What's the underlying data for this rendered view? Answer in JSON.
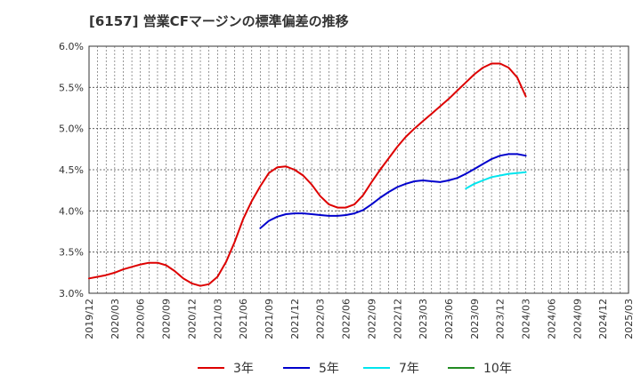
{
  "chart_data": {
    "type": "line",
    "title": "[6157]  営業CFマージンの標準偏差の推移",
    "xlabel": "",
    "ylabel": "",
    "ylim": [
      3.0,
      6.0
    ],
    "yticks": [
      "3.0%",
      "3.5%",
      "4.0%",
      "4.5%",
      "5.0%",
      "5.5%",
      "6.0%"
    ],
    "ytick_values": [
      3.0,
      3.5,
      4.0,
      4.5,
      5.0,
      5.5,
      6.0
    ],
    "xticks": [
      "2019/12",
      "2020/03",
      "2020/06",
      "2020/09",
      "2020/12",
      "2021/03",
      "2021/06",
      "2021/09",
      "2021/12",
      "2022/03",
      "2022/06",
      "2022/09",
      "2022/12",
      "2023/03",
      "2023/06",
      "2023/09",
      "2023/12",
      "2024/03",
      "2024/06",
      "2024/09",
      "2024/12",
      "2025/03"
    ],
    "grid": true,
    "legend_position": "bottom",
    "series": [
      {
        "name": "3年",
        "color": "#dd0000",
        "x": [
          "2019/12",
          "2020/01",
          "2020/02",
          "2020/03",
          "2020/04",
          "2020/05",
          "2020/06",
          "2020/07",
          "2020/08",
          "2020/09",
          "2020/10",
          "2020/11",
          "2020/12",
          "2021/01",
          "2021/02",
          "2021/03",
          "2021/04",
          "2021/05",
          "2021/06",
          "2021/07",
          "2021/08",
          "2021/09",
          "2021/10",
          "2021/11",
          "2021/12",
          "2022/01",
          "2022/02",
          "2022/03",
          "2022/04",
          "2022/05",
          "2022/06",
          "2022/07",
          "2022/08",
          "2022/09",
          "2022/10",
          "2022/11",
          "2022/12",
          "2023/01",
          "2023/02",
          "2023/03",
          "2023/04",
          "2023/05",
          "2023/06",
          "2023/07",
          "2023/08",
          "2023/09",
          "2023/10",
          "2023/11",
          "2023/12",
          "2024/01",
          "2024/02",
          "2024/03"
        ],
        "values": [
          3.18,
          3.2,
          3.22,
          3.25,
          3.29,
          3.32,
          3.35,
          3.37,
          3.37,
          3.34,
          3.27,
          3.18,
          3.12,
          3.09,
          3.11,
          3.2,
          3.38,
          3.62,
          3.9,
          4.12,
          4.3,
          4.46,
          4.53,
          4.54,
          4.5,
          4.43,
          4.32,
          4.18,
          4.08,
          4.04,
          4.04,
          4.08,
          4.19,
          4.35,
          4.5,
          4.64,
          4.78,
          4.9,
          5.0,
          5.09,
          5.18,
          5.27,
          5.36,
          5.46,
          5.56,
          5.66,
          5.74,
          5.79,
          5.79,
          5.74,
          5.62,
          5.39
        ]
      },
      {
        "name": "5年",
        "color": "#0000cc",
        "x": [
          "2021/08",
          "2021/09",
          "2021/10",
          "2021/11",
          "2021/12",
          "2022/01",
          "2022/02",
          "2022/03",
          "2022/04",
          "2022/05",
          "2022/06",
          "2022/07",
          "2022/08",
          "2022/09",
          "2022/10",
          "2022/11",
          "2022/12",
          "2023/01",
          "2023/02",
          "2023/03",
          "2023/04",
          "2023/05",
          "2023/06",
          "2023/07",
          "2023/08",
          "2023/09",
          "2023/10",
          "2023/11",
          "2023/12",
          "2024/01",
          "2024/02",
          "2024/03"
        ],
        "values": [
          3.79,
          3.88,
          3.93,
          3.96,
          3.97,
          3.97,
          3.96,
          3.95,
          3.94,
          3.94,
          3.95,
          3.97,
          4.01,
          4.08,
          4.16,
          4.23,
          4.29,
          4.33,
          4.36,
          4.37,
          4.36,
          4.35,
          4.37,
          4.4,
          4.45,
          4.51,
          4.57,
          4.63,
          4.67,
          4.69,
          4.69,
          4.67
        ]
      },
      {
        "name": "7年",
        "color": "#00e5ee",
        "x": [
          "2023/08",
          "2023/09",
          "2023/10",
          "2023/11",
          "2023/12",
          "2024/01",
          "2024/02",
          "2024/03"
        ],
        "values": [
          4.27,
          4.33,
          4.37,
          4.41,
          4.43,
          4.45,
          4.46,
          4.47
        ]
      },
      {
        "name": "10年",
        "color": "#228b22",
        "x": [],
        "values": []
      }
    ]
  }
}
